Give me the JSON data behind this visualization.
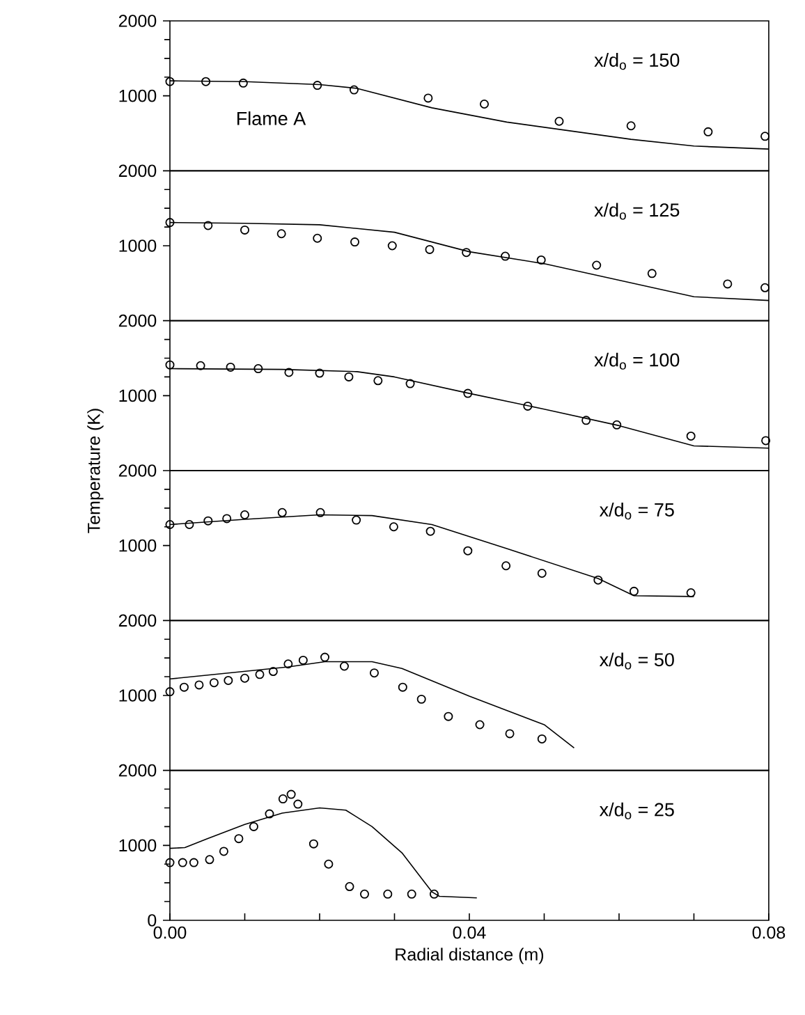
{
  "chart_data": [
    {
      "type": "line",
      "annotations": [
        "x/d$_{o}$ = 150",
        "Flame A"
      ],
      "xlim": [
        0,
        0.08
      ],
      "ylim": [
        0,
        2000
      ],
      "yticks": [
        1000,
        2000
      ],
      "tick_labels": "y",
      "series": [
        {
          "type": "line",
          "color": "#000000",
          "marker": "none",
          "x": [
            0,
            0.01,
            0.02,
            0.025,
            0.035,
            0.045,
            0.0616,
            0.07,
            0.08
          ],
          "values": [
            1200,
            1190,
            1150,
            1100,
            840,
            650,
            420,
            330,
            290
          ]
        },
        {
          "type": "scatter",
          "color": "#000000",
          "marker": "circle",
          "x": [
            0,
            0.0048,
            0.0098,
            0.0197,
            0.0246,
            0.0345,
            0.042,
            0.052,
            0.0616,
            0.0719,
            0.0795
          ],
          "values": [
            1190,
            1190,
            1170,
            1140,
            1080,
            970,
            890,
            660,
            600,
            520,
            460
          ]
        }
      ]
    },
    {
      "type": "line",
      "annotations": [
        "x/d$_{o}$ = 125"
      ],
      "xlim": [
        0,
        0.08
      ],
      "ylim": [
        0,
        2000
      ],
      "yticks": [
        1000,
        2000
      ],
      "tick_labels": "y",
      "series": [
        {
          "type": "line",
          "color": "#000000",
          "marker": "none",
          "x": [
            0,
            0.01,
            0.02,
            0.03,
            0.04,
            0.05,
            0.06,
            0.07,
            0.08
          ],
          "values": [
            1310,
            1300,
            1280,
            1180,
            920,
            760,
            540,
            320,
            270
          ]
        },
        {
          "type": "scatter",
          "color": "#000000",
          "marker": "circle",
          "x": [
            0,
            0.0051,
            0.01,
            0.0149,
            0.0197,
            0.0247,
            0.0297,
            0.0347,
            0.0396,
            0.0448,
            0.0496,
            0.057,
            0.0644,
            0.0745,
            0.0795
          ],
          "values": [
            1310,
            1270,
            1210,
            1160,
            1100,
            1050,
            1000,
            950,
            910,
            860,
            810,
            740,
            630,
            490,
            440
          ]
        }
      ]
    },
    {
      "type": "line",
      "annotations": [
        "x/d$_{o}$ = 100"
      ],
      "ylabel": "Temperature (K)",
      "xlim": [
        0,
        0.08
      ],
      "ylim": [
        0,
        2000
      ],
      "yticks": [
        1000,
        2000
      ],
      "tick_labels": "y",
      "series": [
        {
          "type": "line",
          "color": "#000000",
          "marker": "none",
          "x": [
            0,
            0.015,
            0.025,
            0.03,
            0.04,
            0.05,
            0.06,
            0.07,
            0.08
          ],
          "values": [
            1360,
            1350,
            1320,
            1250,
            1030,
            820,
            600,
            330,
            300
          ]
        },
        {
          "type": "scatter",
          "color": "#000000",
          "marker": "circle",
          "x": [
            0,
            0.0041,
            0.0081,
            0.0118,
            0.0159,
            0.02,
            0.0239,
            0.0278,
            0.0321,
            0.0398,
            0.0478,
            0.0556,
            0.0597,
            0.0696,
            0.0796
          ],
          "values": [
            1410,
            1400,
            1380,
            1360,
            1310,
            1300,
            1250,
            1200,
            1160,
            1030,
            860,
            670,
            610,
            460,
            400
          ]
        }
      ]
    },
    {
      "type": "line",
      "annotations": [
        "x/d$_{o}$ = 75"
      ],
      "xlim": [
        0,
        0.08
      ],
      "ylim": [
        0,
        2000
      ],
      "yticks": [
        1000,
        2000
      ],
      "tick_labels": "y",
      "series": [
        {
          "type": "line",
          "color": "#000000",
          "marker": "none",
          "x": [
            0,
            0.01,
            0.02,
            0.027,
            0.035,
            0.045,
            0.0572,
            0.062,
            0.07
          ],
          "values": [
            1280,
            1350,
            1410,
            1400,
            1280,
            960,
            560,
            330,
            320
          ]
        },
        {
          "type": "scatter",
          "color": "#000000",
          "marker": "circle",
          "x": [
            0,
            0.0026,
            0.0051,
            0.0076,
            0.01,
            0.015,
            0.0201,
            0.0249,
            0.0299,
            0.0348,
            0.0398,
            0.0449,
            0.0497,
            0.0572,
            0.062,
            0.0696
          ],
          "values": [
            1280,
            1280,
            1330,
            1360,
            1410,
            1440,
            1440,
            1340,
            1250,
            1190,
            930,
            730,
            630,
            540,
            390,
            370
          ]
        }
      ]
    },
    {
      "type": "line",
      "annotations": [
        "x/d$_{o}$ = 50"
      ],
      "xlim": [
        0,
        0.08
      ],
      "ylim": [
        0,
        2000
      ],
      "yticks": [
        1000,
        2000
      ],
      "tick_labels": "y",
      "series": [
        {
          "type": "line",
          "color": "#000000",
          "marker": "none",
          "x": [
            0,
            0.0158,
            0.0207,
            0.027,
            0.031,
            0.04,
            0.05,
            0.054
          ],
          "values": [
            1220,
            1380,
            1450,
            1450,
            1360,
            990,
            610,
            300
          ]
        },
        {
          "type": "scatter",
          "color": "#000000",
          "marker": "circle",
          "x": [
            0,
            0.0019,
            0.0039,
            0.0059,
            0.0078,
            0.01,
            0.012,
            0.0138,
            0.0158,
            0.0178,
            0.0207,
            0.0233,
            0.0273,
            0.0311,
            0.0336,
            0.0372,
            0.0414,
            0.0454,
            0.0497
          ],
          "values": [
            1050,
            1110,
            1140,
            1170,
            1200,
            1230,
            1280,
            1320,
            1420,
            1470,
            1510,
            1390,
            1300,
            1110,
            950,
            720,
            610,
            490,
            420
          ]
        }
      ]
    },
    {
      "type": "line",
      "annotations": [
        "x/d$_{o}$ = 25"
      ],
      "xlabel": "Radial distance (m)",
      "xlim": [
        0,
        0.08
      ],
      "ylim": [
        0,
        2000
      ],
      "yticks": [
        0,
        1000,
        2000
      ],
      "xticks": [
        {
          "value": 0,
          "label": "0.00"
        },
        {
          "value": 0.01,
          "label": null
        },
        {
          "value": 0.02,
          "label": null
        },
        {
          "value": 0.03,
          "label": null
        },
        {
          "value": 0.04,
          "label": "0.04"
        },
        {
          "value": 0.05,
          "label": null
        },
        {
          "value": 0.06,
          "label": null
        },
        {
          "value": 0.07,
          "label": null
        },
        {
          "value": 0.08,
          "label": "0.08"
        }
      ],
      "series": [
        {
          "type": "line",
          "color": "#000000",
          "marker": "none",
          "x": [
            0,
            0.002,
            0.005,
            0.01,
            0.015,
            0.02,
            0.0235,
            0.027,
            0.031,
            0.035,
            0.036,
            0.041
          ],
          "values": [
            960,
            970,
            1090,
            1280,
            1430,
            1500,
            1470,
            1250,
            900,
            380,
            320,
            300
          ]
        },
        {
          "type": "scatter",
          "color": "#000000",
          "marker": "circle",
          "x": [
            0,
            0.0017,
            0.0032,
            0.0053,
            0.0072,
            0.0092,
            0.0112,
            0.0133,
            0.0151,
            0.0162,
            0.0171,
            0.0192,
            0.0212,
            0.024,
            0.026,
            0.0291,
            0.0323,
            0.0353
          ],
          "values": [
            770,
            770,
            770,
            810,
            920,
            1090,
            1250,
            1420,
            1620,
            1680,
            1550,
            1020,
            750,
            450,
            350,
            350,
            350,
            350
          ]
        }
      ]
    }
  ]
}
